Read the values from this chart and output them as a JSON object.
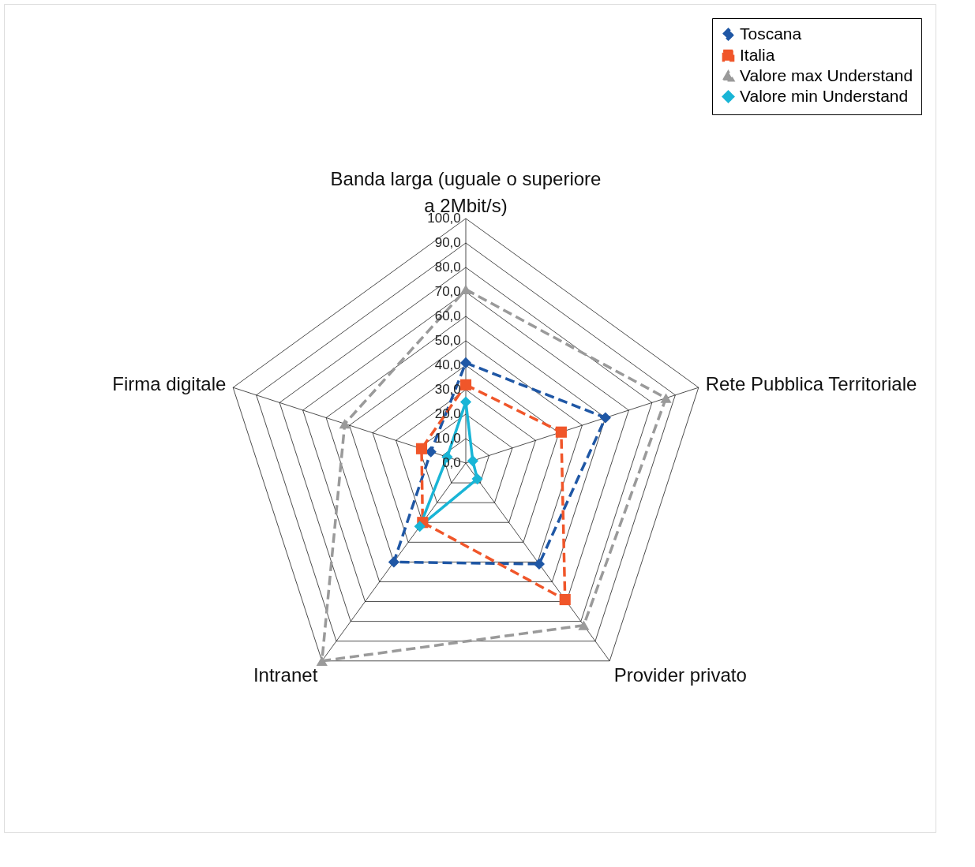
{
  "chart_data": {
    "type": "radar",
    "categories": [
      "Banda larga (uguale o superiore a 2Mbit/s)",
      "Rete Pubblica Territoriale",
      "Provider privato",
      "Intranet",
      "Firma digitale"
    ],
    "ylim": [
      0,
      100
    ],
    "yticks": [
      {
        "value": 0,
        "label": "0,0"
      },
      {
        "value": 10,
        "label": "10,0"
      },
      {
        "value": 20,
        "label": "20,0"
      },
      {
        "value": 30,
        "label": "30,0"
      },
      {
        "value": 40,
        "label": "40,0"
      },
      {
        "value": 50,
        "label": "50,0"
      },
      {
        "value": 60,
        "label": "60,0"
      },
      {
        "value": 70,
        "label": "70,0"
      },
      {
        "value": 80,
        "label": "80,0"
      },
      {
        "value": 90,
        "label": "90,0"
      },
      {
        "value": 100,
        "label": "100,0"
      }
    ],
    "legend": "top right",
    "grid": true,
    "series": [
      {
        "name": "Toscana",
        "color": "#1f57a5",
        "marker": "diamond",
        "line_style": "dashed",
        "values": [
          41,
          60,
          51,
          50,
          15
        ]
      },
      {
        "name": "Italia",
        "color": "#f0562a",
        "marker": "square",
        "line_style": "dashed",
        "values": [
          32,
          41,
          69,
          30,
          19
        ]
      },
      {
        "name": "Valore max Understand",
        "color": "#9a9a9a",
        "marker": "triangle",
        "line_style": "dashed",
        "values": [
          71,
          86,
          82,
          100,
          52
        ]
      },
      {
        "name": "Valore min Understand",
        "color": "#19b5d6",
        "marker": "diamond",
        "line_style": "solid",
        "values": [
          25,
          3,
          8,
          32,
          8
        ]
      }
    ]
  }
}
